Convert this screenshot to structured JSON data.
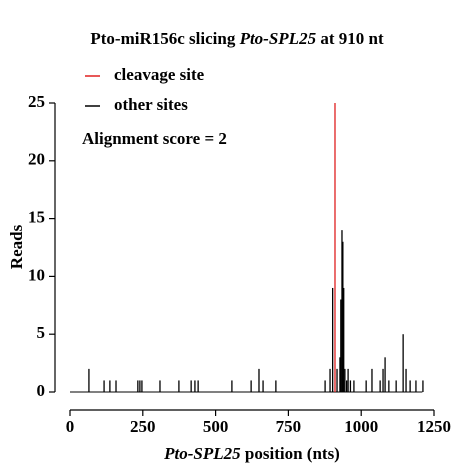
{
  "chart_data": {
    "type": "spike",
    "title": [
      "Pto-miR156c slicing",
      "Pto-SPL25",
      "at 910 nt"
    ],
    "xlabel": [
      "Pto-SPL25",
      "position (nts)"
    ],
    "ylabel": "Reads",
    "annotation": "Alignment score = 2",
    "transcript_length": 1210,
    "xlim": [
      0,
      1250
    ],
    "xticks": [
      0,
      250,
      500,
      750,
      1000,
      1250
    ],
    "ylim": [
      0,
      25
    ],
    "yticks": [
      0,
      5,
      10,
      15,
      20,
      25
    ],
    "series": [
      {
        "name": "cleavage site",
        "color": "#e02020",
        "x": [
          910
        ],
        "values": [
          25
        ]
      },
      {
        "name": "other sites",
        "color": "#000000",
        "x": [
          65,
          117,
          137,
          158,
          233,
          240,
          247,
          309,
          374,
          416,
          429,
          440,
          556,
          622,
          649,
          663,
          707,
          876,
          893,
          902,
          917,
          927,
          930,
          934,
          937,
          940,
          944,
          950,
          955,
          963,
          975,
          1017,
          1037,
          1065,
          1075,
          1082,
          1095,
          1120,
          1144,
          1154,
          1168,
          1188,
          1212
        ],
        "values": [
          2,
          1,
          1,
          1,
          1,
          1,
          1,
          1,
          1,
          1,
          1,
          1,
          1,
          1,
          2,
          1,
          1,
          1,
          2,
          9,
          2,
          3,
          8,
          14,
          13,
          9,
          2,
          1,
          2,
          1,
          1,
          1,
          2,
          1,
          2,
          3,
          1,
          1,
          5,
          2,
          1,
          1,
          1
        ]
      }
    ]
  }
}
